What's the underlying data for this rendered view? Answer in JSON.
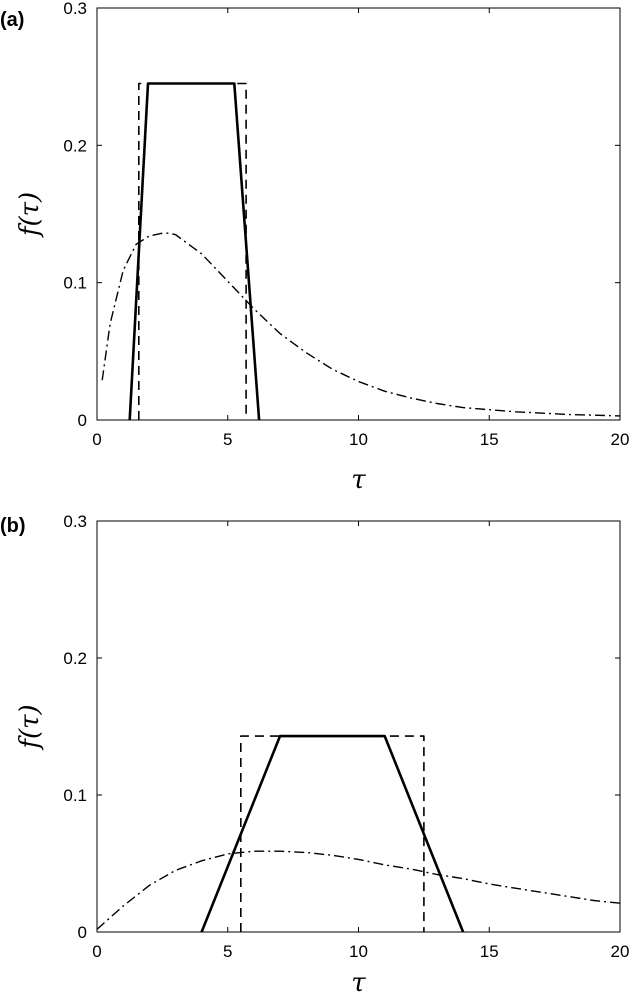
{
  "chart_data": [
    {
      "type": "line",
      "panel_label": "(a)",
      "xlabel": "τ",
      "ylabel": "f(τ)",
      "xlim": [
        0,
        20
      ],
      "ylim": [
        0,
        0.3
      ],
      "xticks": [
        0,
        5,
        10,
        15,
        20
      ],
      "xtick_labels": [
        "0",
        "5",
        "10",
        "15",
        "20"
      ],
      "yticks": [
        0,
        0.1,
        0.2,
        0.3
      ],
      "ytick_labels": [
        "0",
        "0.1",
        "0.2",
        "0.3"
      ],
      "series": [
        {
          "style": "solid",
          "x": [
            1.25,
            1.95,
            5.25,
            6.2
          ],
          "y": [
            0,
            0.245,
            0.245,
            0
          ]
        },
        {
          "style": "dashed",
          "x": [
            1.6,
            1.6,
            5.7,
            5.7
          ],
          "y": [
            0,
            0.245,
            0.245,
            0
          ]
        },
        {
          "style": "dashdot",
          "x": [
            0.2,
            0.5,
            1.0,
            1.5,
            2.0,
            2.5,
            2.75,
            3.0,
            4.0,
            5.0,
            6.0,
            7.0,
            8.0,
            9.0,
            10.0,
            11.0,
            12.0,
            13.0,
            14.0,
            15.0,
            16.0,
            17.0,
            18.0,
            19.0,
            20.0
          ],
          "y": [
            0.029,
            0.07,
            0.109,
            0.128,
            0.134,
            0.136,
            0.136,
            0.135,
            0.121,
            0.101,
            0.081,
            0.063,
            0.049,
            0.037,
            0.028,
            0.021,
            0.016,
            0.012,
            0.009,
            0.0075,
            0.006,
            0.005,
            0.004,
            0.0035,
            0.003
          ]
        }
      ]
    },
    {
      "type": "line",
      "panel_label": "(b)",
      "xlabel": "τ",
      "ylabel": "f(τ)",
      "xlim": [
        0,
        20
      ],
      "ylim": [
        0,
        0.3
      ],
      "xticks": [
        0,
        5,
        10,
        15,
        20
      ],
      "xtick_labels": [
        "0",
        "5",
        "10",
        "15",
        "20"
      ],
      "yticks": [
        0,
        0.1,
        0.2,
        0.3
      ],
      "ytick_labels": [
        "0",
        "0.1",
        "0.2",
        "0.3"
      ],
      "series": [
        {
          "style": "solid",
          "x": [
            4.0,
            7.0,
            11.0,
            14.0
          ],
          "y": [
            0,
            0.143,
            0.143,
            0
          ]
        },
        {
          "style": "dashed",
          "x": [
            5.5,
            5.5,
            12.5,
            12.5
          ],
          "y": [
            0,
            0.143,
            0.143,
            0
          ]
        },
        {
          "style": "dashdot",
          "x": [
            0.0,
            1.0,
            2.0,
            3.0,
            4.0,
            5.0,
            6.0,
            6.5,
            7.0,
            8.0,
            9.0,
            10.0,
            11.0,
            12.0,
            13.0,
            14.0,
            15.0,
            16.0,
            17.0,
            18.0,
            19.0,
            20.0
          ],
          "y": [
            0.002,
            0.019,
            0.034,
            0.045,
            0.052,
            0.057,
            0.059,
            0.059,
            0.059,
            0.058,
            0.056,
            0.053,
            0.049,
            0.046,
            0.042,
            0.039,
            0.035,
            0.032,
            0.029,
            0.026,
            0.023,
            0.021
          ]
        }
      ]
    }
  ]
}
